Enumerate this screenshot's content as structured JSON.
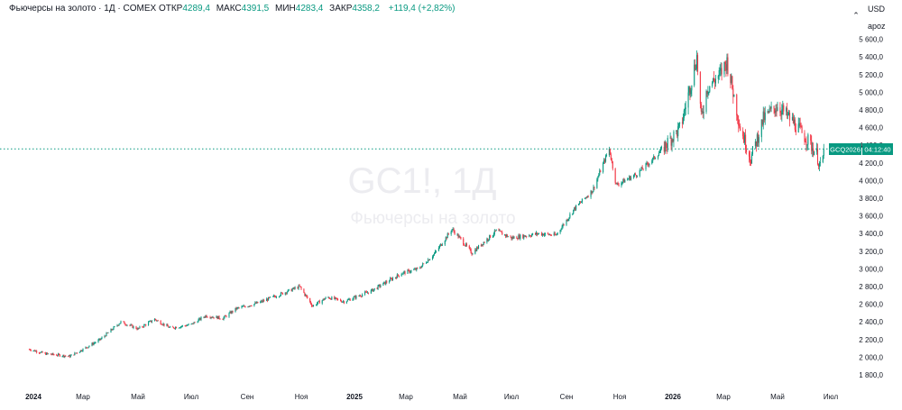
{
  "header": {
    "instrument": "Фьючерсы на золото · 1Д · COMEX",
    "open_label": "ОТКР",
    "open_value": "4289,4",
    "high_label": "МАКС",
    "high_value": "4391,5",
    "low_label": "МИН",
    "low_value": "4283,4",
    "close_label": "ЗАКР",
    "close_value": "4358,2",
    "change": "+119,4 (+2,82%)"
  },
  "axis": {
    "currency": "USD",
    "unit": "apoz"
  },
  "watermark": {
    "symbol": "GC1!, 1Д",
    "name": "Фьючерсы на золото"
  },
  "price_label": {
    "contract": "GCQ2026",
    "countdown": "04:12:40"
  },
  "colors": {
    "up": "#089981",
    "down": "#f23645",
    "price_line": "#089981"
  },
  "chart_data": {
    "type": "candlestick",
    "x_tick_labels": [
      "2024",
      "Мар",
      "Май",
      "Июл",
      "Сен",
      "Ноя",
      "2025",
      "Мар",
      "Май",
      "Июл",
      "Сен",
      "Ноя",
      "2026",
      "Мар",
      "Май",
      "Июл"
    ],
    "y_tick_labels": [
      "1 800,0",
      "2 000,0",
      "2 200,0",
      "2 400,0",
      "2 600,0",
      "2 800,0",
      "3 000,0",
      "3 200,0",
      "3 400,0",
      "3 600,0",
      "3 800,0",
      "4 000,0",
      "4 200,0",
      "4 400,0",
      "4 600,0",
      "4 800,0",
      "5 000,0",
      "5 200,0",
      "5 400,0",
      "5 600,0"
    ],
    "ylim": [
      1700,
      5700
    ],
    "last_price": 4358.2,
    "price_path": [
      {
        "date": "2023-12-27",
        "close": 2090
      },
      {
        "date": "2024-01-15",
        "close": 2040
      },
      {
        "date": "2024-02-14",
        "close": 2010
      },
      {
        "date": "2024-03-01",
        "close": 2090
      },
      {
        "date": "2024-03-20",
        "close": 2200
      },
      {
        "date": "2024-04-12",
        "close": 2400
      },
      {
        "date": "2024-05-01",
        "close": 2320
      },
      {
        "date": "2024-05-20",
        "close": 2430
      },
      {
        "date": "2024-06-07",
        "close": 2330
      },
      {
        "date": "2024-07-01",
        "close": 2370
      },
      {
        "date": "2024-07-17",
        "close": 2470
      },
      {
        "date": "2024-08-05",
        "close": 2440
      },
      {
        "date": "2024-08-20",
        "close": 2550
      },
      {
        "date": "2024-09-15",
        "close": 2620
      },
      {
        "date": "2024-10-30",
        "close": 2800
      },
      {
        "date": "2024-11-14",
        "close": 2580
      },
      {
        "date": "2024-12-01",
        "close": 2680
      },
      {
        "date": "2024-12-20",
        "close": 2630
      },
      {
        "date": "2025-01-20",
        "close": 2750
      },
      {
        "date": "2025-02-24",
        "close": 2950
      },
      {
        "date": "2025-03-15",
        "close": 3000
      },
      {
        "date": "2025-04-02",
        "close": 3170
      },
      {
        "date": "2025-04-22",
        "close": 3450
      },
      {
        "date": "2025-05-15",
        "close": 3180
      },
      {
        "date": "2025-06-13",
        "close": 3430
      },
      {
        "date": "2025-07-01",
        "close": 3350
      },
      {
        "date": "2025-08-01",
        "close": 3400
      },
      {
        "date": "2025-08-20",
        "close": 3380
      },
      {
        "date": "2025-09-10",
        "close": 3680
      },
      {
        "date": "2025-10-01",
        "close": 3890
      },
      {
        "date": "2025-10-20",
        "close": 4360
      },
      {
        "date": "2025-10-28",
        "close": 3950
      },
      {
        "date": "2025-11-20",
        "close": 4070
      },
      {
        "date": "2025-12-10",
        "close": 4250
      },
      {
        "date": "2026-01-10",
        "close": 4600
      },
      {
        "date": "2026-01-29",
        "close": 5400
      },
      {
        "date": "2026-02-03",
        "close": 4700
      },
      {
        "date": "2026-02-10",
        "close": 5050
      },
      {
        "date": "2026-02-25",
        "close": 5200
      },
      {
        "date": "2026-03-05",
        "close": 5350
      },
      {
        "date": "2026-03-20",
        "close": 4600
      },
      {
        "date": "2026-04-01",
        "close": 4250
      },
      {
        "date": "2026-04-15",
        "close": 4700
      },
      {
        "date": "2026-05-01",
        "close": 4850
      },
      {
        "date": "2026-05-20",
        "close": 4650
      },
      {
        "date": "2026-06-05",
        "close": 4450
      },
      {
        "date": "2026-06-15",
        "close": 4300
      },
      {
        "date": "2026-06-20",
        "close": 4100
      },
      {
        "date": "2026-06-23",
        "close": 4358.2
      }
    ],
    "grid": false
  }
}
